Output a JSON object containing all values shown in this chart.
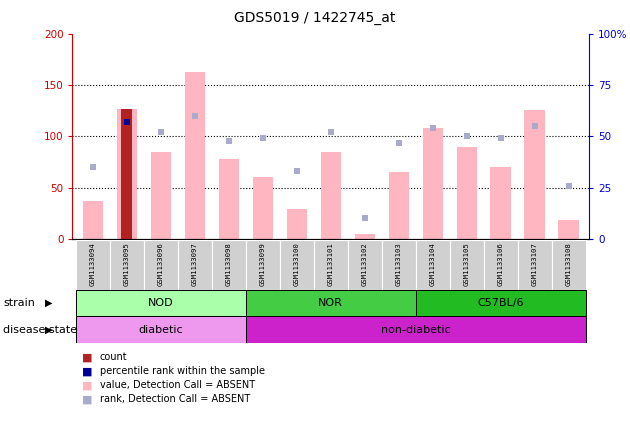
{
  "title": "GDS5019 / 1422745_at",
  "samples": [
    "GSM1133094",
    "GSM1133095",
    "GSM1133096",
    "GSM1133097",
    "GSM1133098",
    "GSM1133099",
    "GSM1133100",
    "GSM1133101",
    "GSM1133102",
    "GSM1133103",
    "GSM1133104",
    "GSM1133105",
    "GSM1133106",
    "GSM1133107",
    "GSM1133108"
  ],
  "value_bars": [
    37,
    127,
    85,
    163,
    78,
    60,
    29,
    85,
    5,
    65,
    108,
    90,
    70,
    126,
    19
  ],
  "rank_dots_pct": [
    35,
    57,
    52,
    60,
    48,
    49,
    33,
    52,
    10,
    47,
    54,
    50,
    49,
    55,
    26
  ],
  "count_bar_idx": 1,
  "count_bar_value": 127,
  "percentile_dot_idx": 1,
  "percentile_dot_value": 57,
  "ylim_left": [
    0,
    200
  ],
  "ylim_right": [
    0,
    100
  ],
  "yticks_left": [
    0,
    50,
    100,
    150,
    200
  ],
  "yticks_right": [
    0,
    25,
    50,
    75,
    100
  ],
  "ytick_labels_left": [
    "0",
    "50",
    "100",
    "150",
    "200"
  ],
  "ytick_labels_right": [
    "0",
    "25",
    "50",
    "75",
    "100%"
  ],
  "color_value_bar": "#FFB6C1",
  "color_count_bar": "#B22222",
  "color_rank_dot": "#AAAACC",
  "color_percentile_dot": "#000099",
  "strain_groups": [
    {
      "label": "NOD",
      "start": 0,
      "end": 4,
      "color": "#AAFFAA"
    },
    {
      "label": "NOR",
      "start": 5,
      "end": 9,
      "color": "#44CC44"
    },
    {
      "label": "C57BL/6",
      "start": 10,
      "end": 14,
      "color": "#22BB22"
    }
  ],
  "disease_groups": [
    {
      "label": "diabetic",
      "start": 0,
      "end": 4,
      "color": "#EE99EE"
    },
    {
      "label": "non-diabetic",
      "start": 5,
      "end": 14,
      "color": "#CC22CC"
    }
  ],
  "legend_items": [
    {
      "label": "count",
      "color": "#B22222"
    },
    {
      "label": "percentile rank within the sample",
      "color": "#000099"
    },
    {
      "label": "value, Detection Call = ABSENT",
      "color": "#FFB6C1"
    },
    {
      "label": "rank, Detection Call = ABSENT",
      "color": "#AAAACC"
    }
  ],
  "bar_width": 0.6,
  "dot_size": 18,
  "left_axis_color": "#CC0000",
  "right_axis_color": "#0000CC",
  "title_fontsize": 10
}
